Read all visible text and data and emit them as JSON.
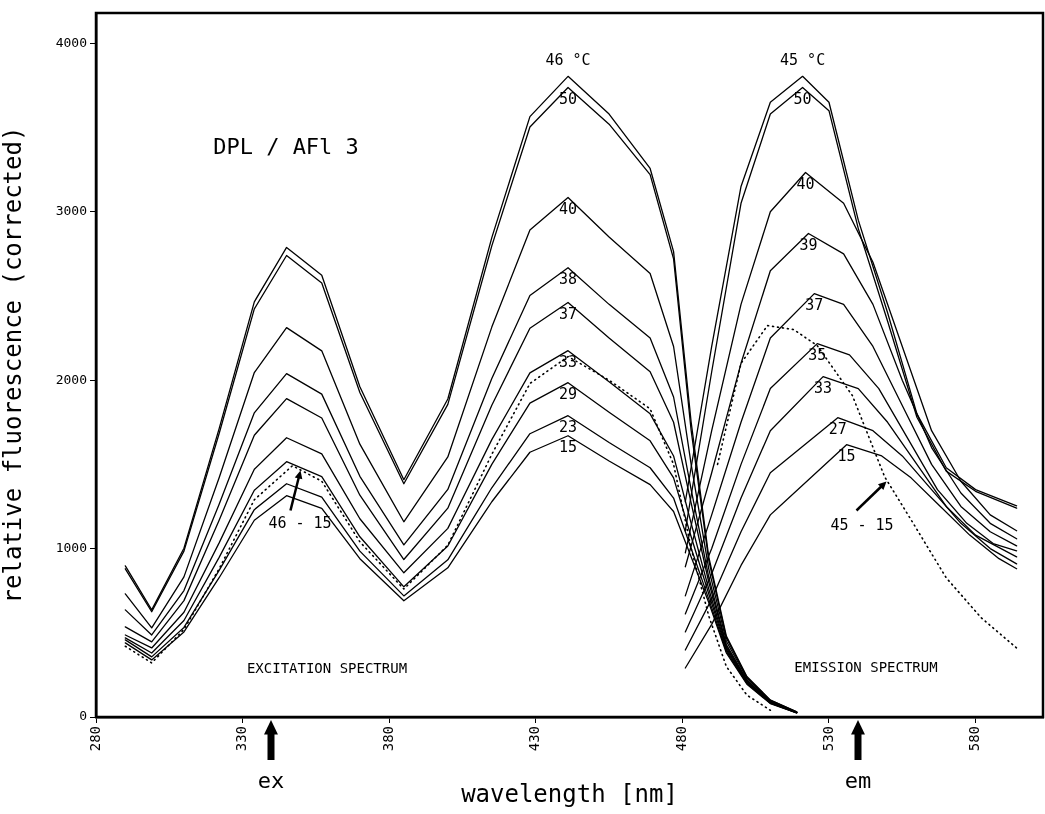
{
  "chart_data": {
    "type": "line",
    "xlabel": "wavelength [nm]",
    "ylabel": "relative fluorescence (corrected)",
    "xlim": [
      280,
      603
    ],
    "xticks": [
      280,
      330,
      380,
      430,
      480,
      530,
      580
    ],
    "ylim": [
      0,
      4180
    ],
    "yticks": [
      0,
      1000,
      2000,
      3000,
      4000
    ],
    "grid": false,
    "legend": false,
    "marker": "none",
    "line_style": "solid",
    "x": [
      290,
      299,
      310,
      322,
      334,
      345,
      357,
      370,
      385,
      400,
      415,
      428,
      441,
      455,
      469,
      477,
      483,
      489,
      495,
      502,
      510,
      519
    ],
    "series": [
      {
        "name": "46 °C",
        "color": "#000000",
        "values": [
          897,
          636,
          1002,
          1712,
          2465,
          2788,
          2623,
          1961,
          1409,
          1888,
          2846,
          3565,
          3804,
          3580,
          3257,
          2763,
          1750,
          950,
          480,
          240,
          100,
          30
        ]
      },
      {
        "name": "50",
        "color": "#000000",
        "values": [
          880,
          625,
          985,
          1683,
          2423,
          2740,
          2577,
          1927,
          1385,
          1856,
          2797,
          3503,
          3738,
          3520,
          3220,
          2720,
          1700,
          930,
          470,
          235,
          100,
          30
        ]
      },
      {
        "name": "40",
        "color": "#000000",
        "values": [
          731,
          529,
          832,
          1421,
          2045,
          2312,
          2174,
          1620,
          1159,
          1544,
          2315,
          2892,
          3085,
          2850,
          2633,
          2200,
          1500,
          880,
          450,
          230,
          95,
          28
        ]
      },
      {
        "name": "38",
        "color": "#000000",
        "values": [
          636,
          487,
          751,
          1263,
          1806,
          2039,
          1917,
          1429,
          1022,
          1351,
          2010,
          2503,
          2668,
          2450,
          2250,
          1900,
          1350,
          830,
          430,
          220,
          90,
          27
        ]
      },
      {
        "name": "37",
        "color": "#000000",
        "values": [
          535,
          446,
          691,
          1168,
          1673,
          1890,
          1775,
          1317,
          935,
          1240,
          1851,
          2308,
          2461,
          2250,
          2050,
          1750,
          1270,
          800,
          420,
          215,
          88,
          27
        ]
      },
      {
        "name": "33",
        "color": "#000000",
        "values": [
          487,
          410,
          622,
          1034,
          1471,
          1658,
          1562,
          1177,
          856,
          1120,
          1647,
          2043,
          2175,
          1990,
          1800,
          1550,
          1150,
          760,
          410,
          210,
          86,
          26
        ]
      },
      {
        "name": "29",
        "color": "#000000",
        "values": [
          470,
          380,
          573,
          948,
          1346,
          1516,
          1427,
          1070,
          773,
          1015,
          1500,
          1864,
          1985,
          1810,
          1640,
          1420,
          1070,
          730,
          400,
          205,
          84,
          25
        ]
      },
      {
        "name": "23",
        "color": "#000000",
        "values": [
          458,
          357,
          532,
          871,
          1231,
          1385,
          1305,
          985,
          719,
          933,
          1361,
          1682,
          1789,
          1630,
          1480,
          1300,
          1000,
          700,
          390,
          200,
          82,
          25
        ]
      },
      {
        "name": "15",
        "color": "#000000",
        "values": [
          440,
          339,
          505,
          827,
          1168,
          1314,
          1239,
          940,
          690,
          886,
          1278,
          1572,
          1670,
          1520,
          1380,
          1220,
          950,
          680,
          380,
          195,
          80,
          25
        ]
      },
      {
        "color": "#000000",
        "line_style": "dotted",
        "x": [
          290,
          299,
          310,
          322,
          334,
          347,
          357,
          370,
          385,
          400,
          415,
          428,
          441,
          455,
          469,
          477,
          483,
          489,
          495,
          502,
          510
        ],
        "values": [
          420,
          321,
          520,
          880,
          1290,
          1492,
          1400,
          1040,
          760,
          1020,
          1560,
          1980,
          2140,
          2000,
          1830,
          1500,
          1000,
          600,
          300,
          130,
          40
        ]
      },
      {
        "name": "45 °C",
        "color": "#000000",
        "x": [
          481,
          490,
          500,
          510,
          521,
          530,
          540,
          550,
          560,
          570,
          580,
          594
        ],
        "values": [
          1278,
          2200,
          3150,
          3650,
          3804,
          3650,
          2950,
          2400,
          1800,
          1480,
          1350,
          1254
        ]
      },
      {
        "name": "50",
        "color": "#000000",
        "x": [
          481,
          490,
          500,
          510,
          521,
          530,
          540,
          550,
          560,
          570,
          580,
          594
        ],
        "values": [
          1106,
          2050,
          3050,
          3580,
          3738,
          3600,
          2900,
          2350,
          1780,
          1460,
          1340,
          1240
        ]
      },
      {
        "name": "40",
        "color": "#000000",
        "x": [
          481,
          490,
          500,
          510,
          522,
          535,
          545,
          555,
          565,
          575,
          585,
          594
        ],
        "values": [
          975,
          1700,
          2450,
          3000,
          3233,
          3050,
          2700,
          2200,
          1700,
          1400,
          1200,
          1106
        ]
      },
      {
        "name": "39",
        "color": "#000000",
        "x": [
          481,
          490,
          500,
          510,
          523,
          535,
          545,
          555,
          565,
          575,
          585,
          594
        ],
        "values": [
          892,
          1450,
          2100,
          2650,
          2871,
          2750,
          2450,
          2000,
          1600,
          1330,
          1150,
          1058
        ]
      },
      {
        "name": "37",
        "color": "#000000",
        "x": [
          481,
          490,
          500,
          510,
          525,
          535,
          545,
          555,
          565,
          575,
          585,
          594
        ],
        "values": [
          719,
          1200,
          1750,
          2250,
          2514,
          2450,
          2200,
          1850,
          1500,
          1250,
          1100,
          1016
        ]
      },
      {
        "name": "35",
        "color": "#000000",
        "x": [
          481,
          490,
          500,
          510,
          526,
          537,
          547,
          557,
          567,
          577,
          586,
          594
        ],
        "values": [
          612,
          1000,
          1500,
          1950,
          2217,
          2150,
          1950,
          1650,
          1350,
          1150,
          1030,
          987
        ]
      },
      {
        "name": "33",
        "color": "#000000",
        "x": [
          481,
          490,
          500,
          510,
          528,
          540,
          550,
          560,
          570,
          580,
          594
        ],
        "values": [
          505,
          850,
          1300,
          1700,
          2021,
          1950,
          1750,
          1500,
          1250,
          1080,
          951
        ]
      },
      {
        "name": "27",
        "color": "#000000",
        "x": [
          481,
          490,
          500,
          510,
          533,
          545,
          555,
          565,
          575,
          585,
          594
        ],
        "values": [
          398,
          700,
          1100,
          1450,
          1777,
          1700,
          1550,
          1350,
          1150,
          1000,
          909
        ]
      },
      {
        "name": "15",
        "color": "#000000",
        "x": [
          481,
          490,
          500,
          510,
          536,
          548,
          558,
          568,
          578,
          588,
          594
        ],
        "values": [
          291,
          550,
          900,
          1200,
          1617,
          1550,
          1420,
          1250,
          1080,
          940,
          880
        ]
      },
      {
        "color": "#000000",
        "line_style": "dotted",
        "x": [
          492,
          500,
          509,
          518,
          526,
          538,
          549,
          558,
          570,
          582,
          594
        ],
        "values": [
          1500,
          2100,
          2324,
          2300,
          2205,
          1908,
          1426,
          1171,
          826,
          588,
          410
        ]
      }
    ],
    "annotations": [
      "DPL / AFl 3",
      "EXCITATION SPECTRUM",
      "EMISSION SPECTRUM",
      "46 - 15",
      "45 - 15",
      "ex",
      "em"
    ]
  }
}
